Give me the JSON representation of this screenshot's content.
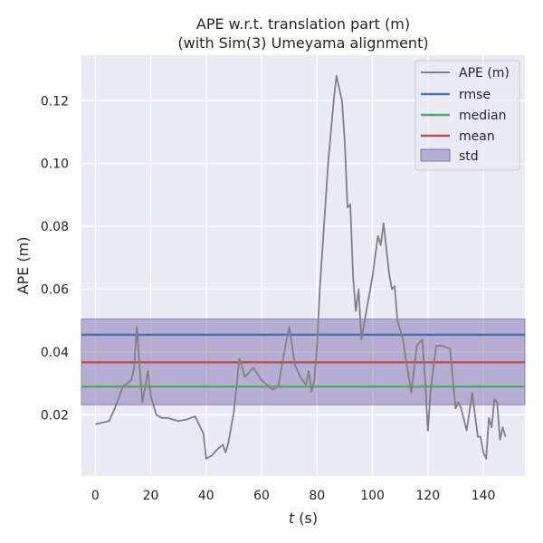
{
  "chart_data": {
    "type": "line",
    "title_line1": "APE w.r.t. translation part (m)",
    "title_line2": "(with Sim(3) Umeyama alignment)",
    "xlabel_var": "t",
    "xlabel_unit": " (s)",
    "ylabel": "APE (m)",
    "xlim": [
      -5,
      155
    ],
    "ylim": [
      0.0005,
      0.1345
    ],
    "x_ticks": [
      0,
      20,
      40,
      60,
      80,
      100,
      120,
      140
    ],
    "y_ticks": [
      0.02,
      0.04,
      0.06,
      0.08,
      0.1,
      0.12
    ],
    "y_tick_labels": [
      "0.02",
      "0.04",
      "0.06",
      "0.08",
      "0.10",
      "0.12"
    ],
    "grid": true,
    "legend_placement": "top-right",
    "colors": {
      "background": "#eaeaf2",
      "grid": "#ffffff",
      "ape": "#808080",
      "rmse": "#4c72b0",
      "median": "#55a868",
      "mean": "#c44e52",
      "std": "#8172b2"
    },
    "series": [
      {
        "name": "APE (m)",
        "x": [
          0,
          5,
          7,
          10,
          13,
          14,
          15,
          16,
          17,
          19,
          20,
          22,
          24,
          26,
          28,
          30,
          33,
          36,
          39,
          40,
          42,
          44,
          46,
          47,
          48,
          50,
          52,
          54,
          57,
          60,
          64,
          66,
          69,
          70,
          72,
          74,
          76,
          77,
          78,
          79,
          80,
          81,
          84,
          86,
          87,
          89,
          90,
          91,
          92,
          93,
          94,
          95,
          96,
          98,
          100,
          102,
          103,
          104,
          106,
          107,
          108,
          109,
          111,
          112,
          114,
          116,
          118,
          119,
          120,
          121,
          123,
          125,
          128,
          130,
          131,
          132,
          134,
          135,
          136,
          137,
          138,
          139,
          140,
          141,
          142,
          143,
          144,
          145,
          146,
          147,
          148
        ],
        "y": [
          0.017,
          0.018,
          0.022,
          0.029,
          0.031,
          0.035,
          0.048,
          0.035,
          0.024,
          0.034,
          0.026,
          0.02,
          0.019,
          0.019,
          0.0185,
          0.018,
          0.0185,
          0.0195,
          0.014,
          0.006,
          0.007,
          0.009,
          0.0105,
          0.008,
          0.011,
          0.021,
          0.038,
          0.032,
          0.035,
          0.031,
          0.028,
          0.029,
          0.044,
          0.048,
          0.036,
          0.032,
          0.0295,
          0.034,
          0.0275,
          0.031,
          0.042,
          0.06,
          0.1,
          0.12,
          0.128,
          0.12,
          0.107,
          0.086,
          0.087,
          0.064,
          0.053,
          0.06,
          0.044,
          0.054,
          0.064,
          0.077,
          0.074,
          0.081,
          0.065,
          0.06,
          0.061,
          0.05,
          0.044,
          0.038,
          0.027,
          0.042,
          0.044,
          0.031,
          0.015,
          0.028,
          0.042,
          0.042,
          0.041,
          0.022,
          0.024,
          0.022,
          0.015,
          0.021,
          0.027,
          0.02,
          0.013,
          0.013,
          0.008,
          0.006,
          0.019,
          0.016,
          0.025,
          0.024,
          0.012,
          0.016,
          0.013
        ]
      },
      {
        "name": "rmse",
        "y": 0.0455
      },
      {
        "name": "median",
        "y": 0.029
      },
      {
        "name": "mean",
        "y": 0.0367
      },
      {
        "name": "std",
        "y_low": 0.0232,
        "y_high": 0.0505
      }
    ]
  }
}
